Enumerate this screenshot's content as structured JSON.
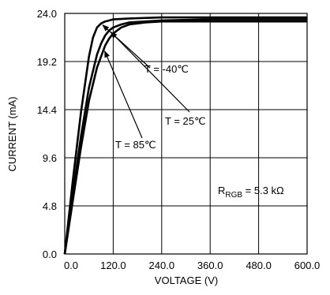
{
  "chart_data": {
    "type": "line",
    "xlabel": "VOLTAGE (V)",
    "ylabel": "CURRENT (mA)",
    "xlim": [
      0,
      600
    ],
    "ylim": [
      0,
      24
    ],
    "x_ticks": [
      0,
      120,
      240,
      360,
      480,
      600
    ],
    "y_ticks": [
      0,
      4.8,
      9.6,
      14.4,
      19.2,
      24
    ],
    "x_tick_labels": [
      "0.0",
      "120.0",
      "240.0",
      "360.0",
      "480.0",
      "600.0"
    ],
    "y_tick_labels": [
      "0.0",
      "4.8",
      "9.6",
      "14.4",
      "19.2",
      "24.0"
    ],
    "grid": true,
    "series": [
      {
        "name": "T = -40℃",
        "x": [
          0,
          20,
          40,
          60,
          70,
          80,
          90,
          100,
          120,
          160,
          240,
          360,
          480,
          600
        ],
        "y": [
          0,
          7.3,
          14.1,
          19.7,
          21.6,
          22.6,
          23.0,
          23.2,
          23.4,
          23.5,
          23.6,
          23.6,
          23.6,
          23.6
        ]
      },
      {
        "name": "T = 25℃",
        "x": [
          0,
          20,
          40,
          60,
          80,
          90,
          100,
          110,
          120,
          140,
          160,
          200,
          240,
          360,
          480,
          600
        ],
        "y": [
          0,
          6.0,
          11.7,
          16.6,
          19.9,
          21.0,
          21.8,
          22.3,
          22.6,
          22.9,
          23.1,
          23.2,
          23.3,
          23.4,
          23.4,
          23.4
        ]
      },
      {
        "name": "T = 85℃",
        "x": [
          0,
          20,
          40,
          60,
          80,
          100,
          110,
          120,
          140,
          160,
          200,
          240,
          360,
          480,
          600
        ],
        "y": [
          0,
          5.3,
          10.6,
          15.3,
          18.6,
          20.8,
          21.5,
          22.0,
          22.6,
          22.9,
          23.1,
          23.2,
          23.2,
          23.2,
          23.2
        ]
      }
    ],
    "annotations": [
      {
        "text": "T = -40℃",
        "target_series": 0,
        "target": [
          90,
          23.0
        ]
      },
      {
        "text": "T = 25℃",
        "target_series": 1,
        "target": [
          110,
          22.3
        ]
      },
      {
        "text": "T = 85℃",
        "target_series": 2,
        "target": [
          95,
          20.4
        ]
      }
    ],
    "resistor_label": {
      "prefix": "R",
      "subscript": "RGB",
      "suffix": " = 5.3 kΩ"
    }
  }
}
